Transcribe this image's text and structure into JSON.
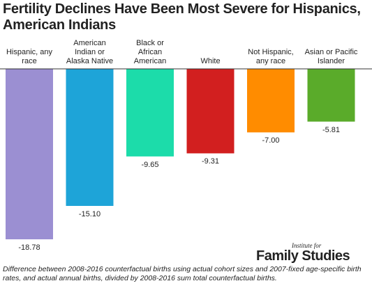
{
  "chart_data": {
    "type": "bar",
    "title": "Fertility Declines Have Been Most Severe for Hispanics, American Indians",
    "categories": [
      "Hispanic, any race",
      "American Indian or Alaska Native",
      "Black or African American",
      "White",
      "Not Hispanic, any race",
      "Asian or Pacific Islander"
    ],
    "values": [
      -18.78,
      -15.1,
      -9.65,
      -9.31,
      -7.0,
      -5.81
    ],
    "value_labels": [
      "-18.78",
      "-15.10",
      "-9.65",
      "-9.31",
      "-7.00",
      "-5.81"
    ],
    "colors": [
      "#9b8fd2",
      "#1ea4d8",
      "#1cdcaa",
      "#d21f1f",
      "#ff8c00",
      "#5aab2a"
    ],
    "logo_top": "Institute for",
    "logo_main": "Family Studies",
    "note": "Difference between 2008-2016 counterfactual births using actual cohort sizes and 2007-fixed age-specific birth rates, and actual annual births, divided by 2008-2016 sum total counterfactual births."
  }
}
